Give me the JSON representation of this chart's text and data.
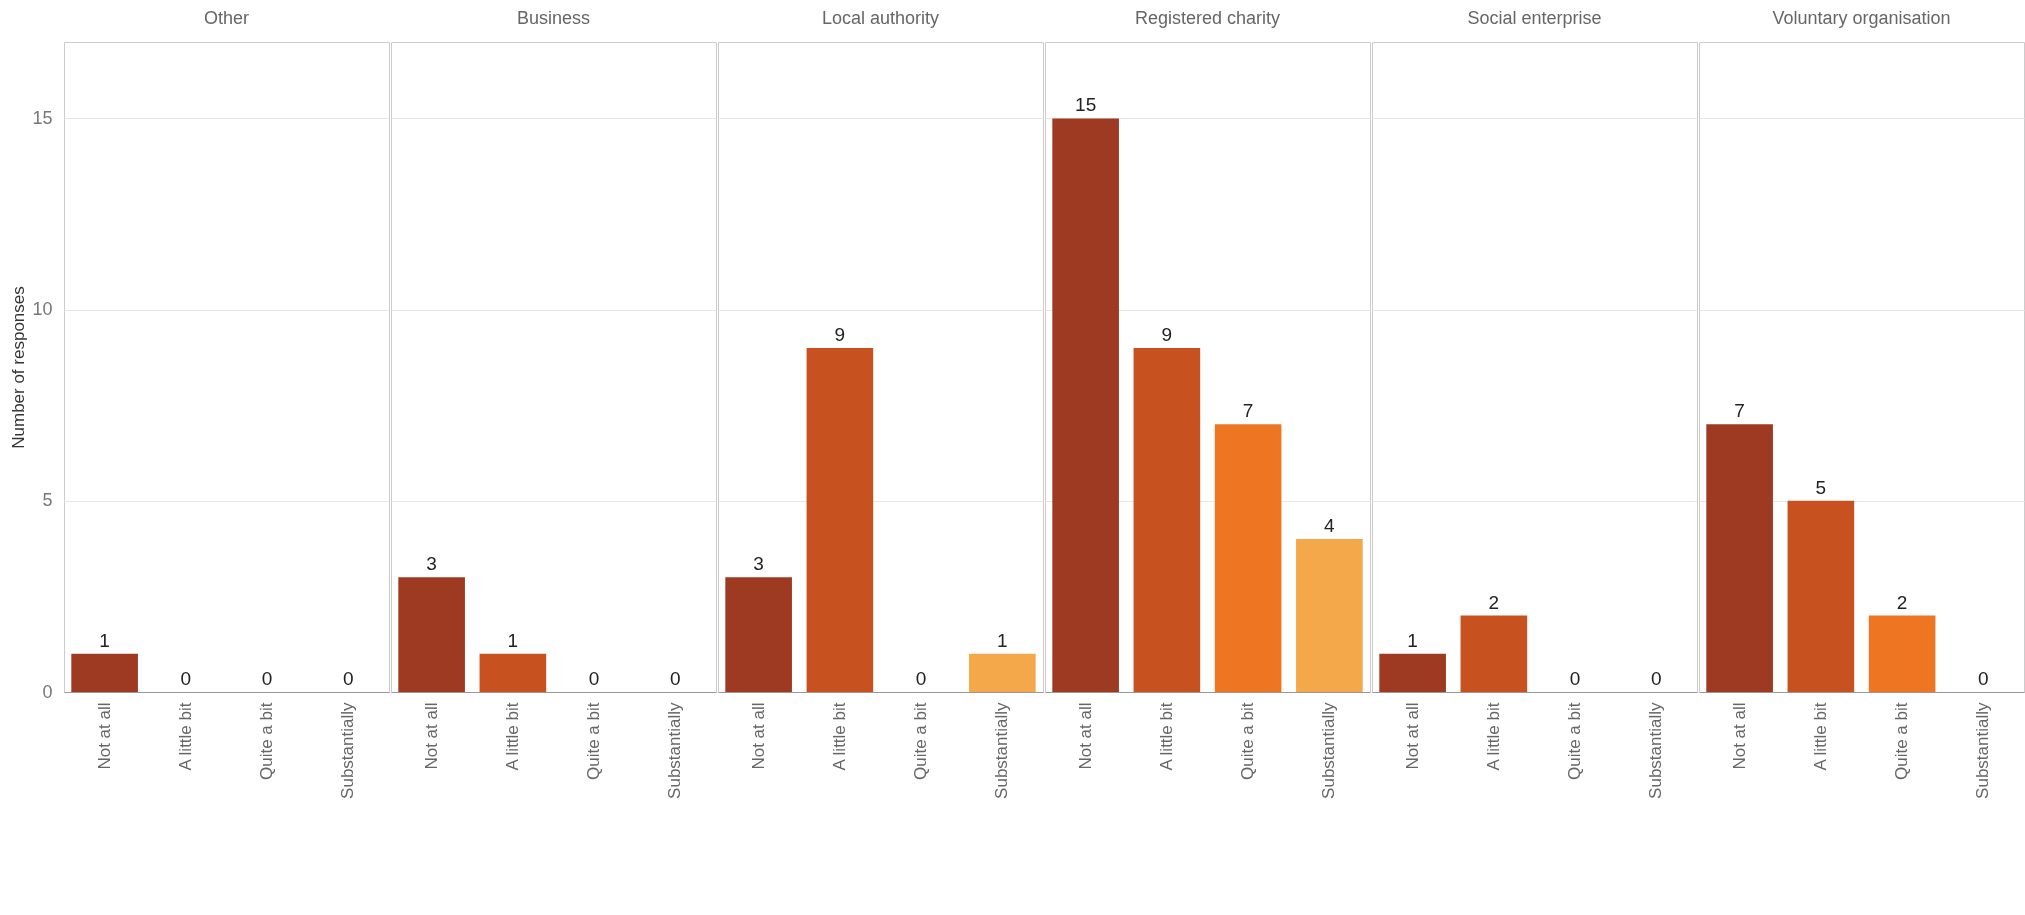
{
  "chart_data": [
    {
      "type": "bar",
      "title": "Other",
      "ylabel": "Number of responses",
      "categories": [
        "Not at all",
        "A little bit",
        "Quite a bit",
        "Substantially"
      ],
      "values": [
        1,
        0,
        0,
        0
      ],
      "colors": [
        "#9e3a22",
        "#c75220",
        "#ee7623",
        "#f4a84a"
      ],
      "ylim": [
        0,
        17
      ],
      "yticks": [
        0,
        5,
        10,
        15
      ],
      "grid": "y",
      "data_labels": true
    },
    {
      "type": "bar",
      "title": "Business",
      "categories": [
        "Not at all",
        "A little bit",
        "Quite a bit",
        "Substantially"
      ],
      "values": [
        3,
        1,
        0,
        0
      ],
      "colors": [
        "#9e3a22",
        "#c75220",
        "#ee7623",
        "#f4a84a"
      ],
      "ylim": [
        0,
        17
      ],
      "yticks": [
        0,
        5,
        10,
        15
      ],
      "grid": "y",
      "data_labels": true,
      "tick_labels": "x"
    },
    {
      "type": "bar",
      "title": "Local authority",
      "categories": [
        "Not at all",
        "A little bit",
        "Quite a bit",
        "Substantially"
      ],
      "values": [
        3,
        9,
        0,
        1
      ],
      "colors": [
        "#9e3a22",
        "#c75220",
        "#ee7623",
        "#f4a84a"
      ],
      "ylim": [
        0,
        17
      ],
      "yticks": [
        0,
        5,
        10,
        15
      ],
      "grid": "y",
      "data_labels": true,
      "tick_labels": "x"
    },
    {
      "type": "bar",
      "title": "Registered charity",
      "categories": [
        "Not at all",
        "A little bit",
        "Quite a bit",
        "Substantially"
      ],
      "values": [
        15,
        9,
        7,
        4
      ],
      "colors": [
        "#9e3a22",
        "#c75220",
        "#ee7623",
        "#f4a84a"
      ],
      "ylim": [
        0,
        17
      ],
      "yticks": [
        0,
        5,
        10,
        15
      ],
      "grid": "y",
      "data_labels": true,
      "tick_labels": "x"
    },
    {
      "type": "bar",
      "title": "Social enterprise",
      "categories": [
        "Not at all",
        "A little bit",
        "Quite a bit",
        "Substantially"
      ],
      "values": [
        1,
        2,
        0,
        0
      ],
      "colors": [
        "#9e3a22",
        "#c75220",
        "#ee7623",
        "#f4a84a"
      ],
      "ylim": [
        0,
        17
      ],
      "yticks": [
        0,
        5,
        10,
        15
      ],
      "grid": "y",
      "data_labels": true,
      "tick_labels": "x"
    },
    {
      "type": "bar",
      "title": "Voluntary organisation",
      "categories": [
        "Not at all",
        "A little bit",
        "Quite a bit",
        "Substantially"
      ],
      "values": [
        7,
        5,
        2,
        0
      ],
      "colors": [
        "#9e3a22",
        "#c75220",
        "#ee7623",
        "#f4a84a"
      ],
      "ylim": [
        0,
        17
      ],
      "yticks": [
        0,
        5,
        10,
        15
      ],
      "grid": "y",
      "data_labels": true,
      "tick_labels": "x"
    }
  ]
}
